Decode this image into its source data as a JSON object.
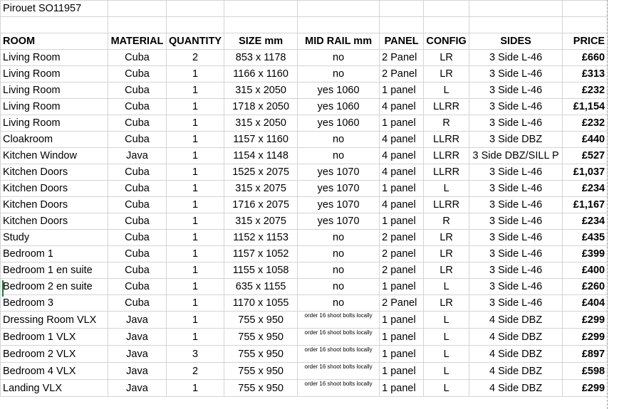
{
  "sheet": {
    "title": "Pirouet SO11957",
    "headers": [
      "ROOM",
      "MATERIAL",
      "QUANTITY",
      "SIZE mm",
      "MID RAIL mm",
      "PANEL",
      "CONFIG",
      "SIDES",
      "PRICE"
    ],
    "rows": [
      [
        "Living Room",
        "Cuba",
        "2",
        "853 x 1178",
        "no",
        "2 Panel",
        "LR",
        "3 Side L-46",
        "£660"
      ],
      [
        "Living Room",
        "Cuba",
        "1",
        "1166 x 1160",
        "no",
        "2 Panel",
        "LR",
        "3 Side L-46",
        "£313"
      ],
      [
        "Living Room",
        "Cuba",
        "1",
        "315 x 2050",
        "yes 1060",
        "1 panel",
        "L",
        "3 Side L-46",
        "£232"
      ],
      [
        "Living Room",
        "Cuba",
        "1",
        "1718 x 2050",
        "yes 1060",
        "4 panel",
        "LLRR",
        "3 Side L-46",
        "£1,154"
      ],
      [
        "Living Room",
        "Cuba",
        "1",
        "315 x 2050",
        "yes 1060",
        "1 panel",
        "R",
        "3 Side L-46",
        "£232"
      ],
      [
        "Cloakroom",
        "Cuba",
        "1",
        "1157 x 1160",
        "no",
        "4 panel",
        "LLRR",
        "3 Side DBZ",
        "£440"
      ],
      [
        "Kitchen Window",
        "Java",
        "1",
        "1154 x 1148",
        "no",
        "4 panel",
        "LLRR",
        "3 Side DBZ/SILL P",
        "£527"
      ],
      [
        "Kitchen Doors",
        "Cuba",
        "1",
        "1525 x 2075",
        "yes 1070",
        "4 panel",
        "LLRR",
        "3 Side L-46",
        "£1,037"
      ],
      [
        "Kitchen Doors",
        "Cuba",
        "1",
        "315 x 2075",
        "yes 1070",
        "1 panel",
        "L",
        "3 Side L-46",
        "£234"
      ],
      [
        "Kitchen Doors",
        "Cuba",
        "1",
        "1716 x 2075",
        "yes 1070",
        "4 panel",
        "LLRR",
        "3 Side L-46",
        "£1,167"
      ],
      [
        "Kitchen Doors",
        "Cuba",
        "1",
        "315 x 2075",
        "yes 1070",
        "1 panel",
        "R",
        "3 Side L-46",
        "£234"
      ],
      [
        "Study",
        "Cuba",
        "1",
        "1152 x 1153",
        "no",
        "2 panel",
        "LR",
        "3 Side L-46",
        "£435"
      ],
      [
        "Bedroom 1",
        "Cuba",
        "1",
        "1157 x 1052",
        "no",
        "2 panel",
        "LR",
        "3 Side L-46",
        "£399"
      ],
      [
        "Bedroom 1 en suite",
        "Cuba",
        "1",
        "1155 x 1058",
        "no",
        "2 panel",
        "LR",
        "3 Side L-46",
        "£400"
      ],
      [
        "Bedroom 2 en suite",
        "Cuba",
        "1",
        "635 x 1155",
        "no",
        "1 panel",
        "L",
        "3 Side L-46",
        "£260"
      ],
      [
        "Bedroom 3",
        "Cuba",
        "1",
        "1170 x 1055",
        "no",
        "2 Panel",
        "LR",
        "3 Side L-46",
        "£404"
      ],
      [
        "Dressing Room VLX",
        "Java",
        "1",
        "755 x 950",
        "order 16 shoot bolts locally",
        "1 panel",
        "L",
        "4 Side DBZ",
        "£299"
      ],
      [
        "Bedroom 1 VLX",
        "Java",
        "1",
        "755 x 950",
        "order 16 shoot bolts locally",
        "1 panel",
        "L",
        "4 Side DBZ",
        "£299"
      ],
      [
        "Bedroom 2 VLX",
        "Java",
        "3",
        "755 x 950",
        "order 16 shoot bolts locally",
        "1 panel",
        "L",
        "4 Side DBZ",
        "£897"
      ],
      [
        "Bedroom 4 VLX",
        "Java",
        "2",
        "755 x 950",
        "order 16 shoot bolts locally",
        "1 panel",
        "L",
        "4 Side DBZ",
        "£598"
      ],
      [
        "Landing VLX",
        "Java",
        "1",
        "755 x 950",
        "order 16 shoot bolts locally",
        "1 panel",
        "L",
        "4 Side DBZ",
        "£299"
      ]
    ]
  }
}
